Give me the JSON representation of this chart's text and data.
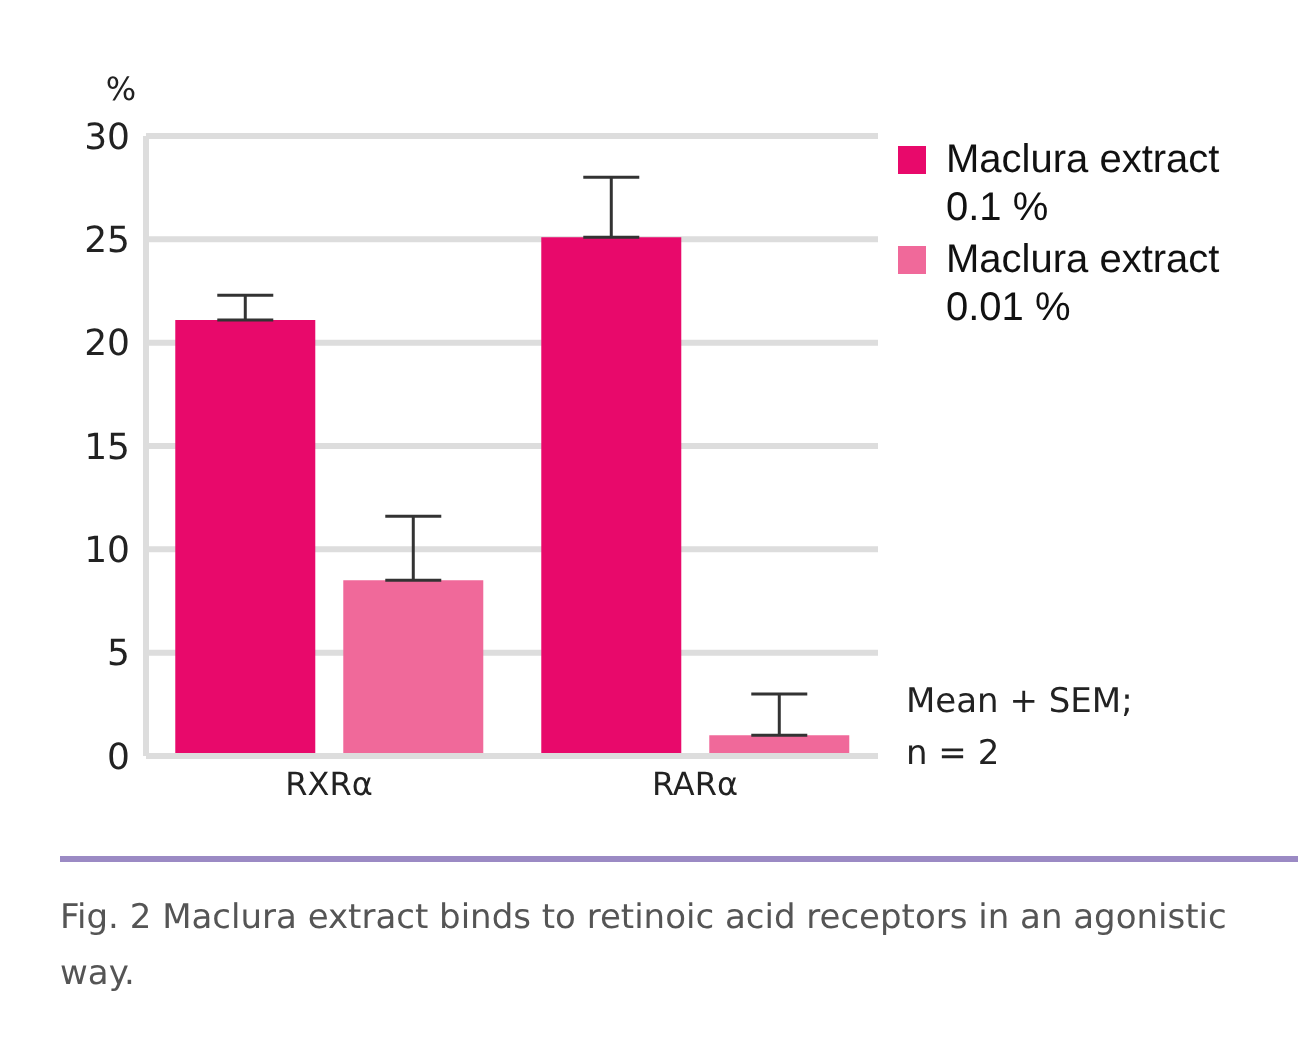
{
  "chart_data": {
    "type": "bar",
    "ylabel": "%",
    "categories": [
      "RXRα",
      "RARα"
    ],
    "series": [
      {
        "name": "Maclura extract 0.1 %",
        "color": "#e8096b",
        "values": [
          21.1,
          25.1
        ],
        "errors": [
          [
            21.1,
            22.3
          ],
          [
            25.1,
            28.0
          ]
        ]
      },
      {
        "name": "Maclura extract 0.01 %",
        "color": "#f0699a",
        "values": [
          8.5,
          1.0
        ],
        "errors": [
          [
            8.5,
            11.6
          ],
          [
            1.0,
            3.0
          ]
        ]
      }
    ],
    "ylim": [
      0,
      30
    ],
    "yticks": [
      0,
      5,
      10,
      15,
      20,
      25,
      30
    ],
    "grid": "y",
    "legend": "top right",
    "annotations": [
      "Mean + SEM;\nn = 2",
      "Fig. 2 Maclura extract binds to retinoic acid receptors in an agonistic way."
    ]
  }
}
